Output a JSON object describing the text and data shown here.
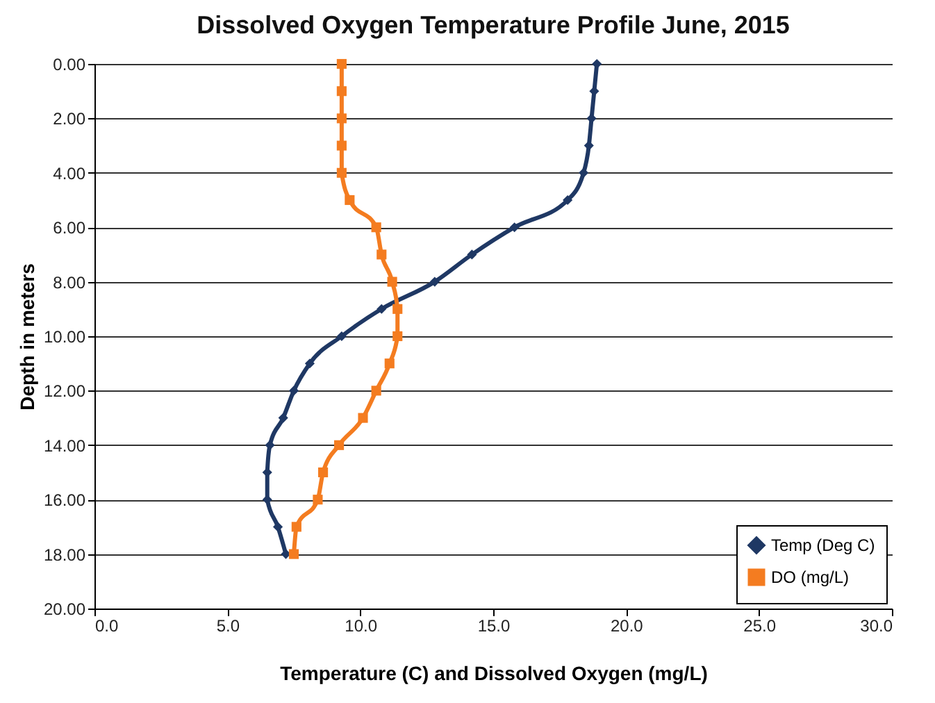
{
  "chart_data": {
    "type": "line",
    "title": "Dissolved Oxygen  Temperature Profile June, 2015",
    "xlabel": "Temperature (C) and Dissolved Oxygen (mg/L)",
    "ylabel": "Depth in meters",
    "xlim": [
      0,
      30
    ],
    "xticks": [
      {
        "value": 0,
        "label": "0.0"
      },
      {
        "value": 5,
        "label": "5.0"
      },
      {
        "value": 10,
        "label": "10.0"
      },
      {
        "value": 15,
        "label": "15.0"
      },
      {
        "value": 20,
        "label": "20.0"
      },
      {
        "value": 25,
        "label": "25.0"
      },
      {
        "value": 30,
        "label": "30.0"
      }
    ],
    "ylim": [
      20,
      0
    ],
    "yticks": [
      {
        "value": 0,
        "label": "0.00"
      },
      {
        "value": 2,
        "label": "2.00"
      },
      {
        "value": 4,
        "label": "4.00"
      },
      {
        "value": 6,
        "label": "6.00"
      },
      {
        "value": 8,
        "label": "8.00"
      },
      {
        "value": 10,
        "label": "10.00"
      },
      {
        "value": 12,
        "label": "12.00"
      },
      {
        "value": 14,
        "label": "14.00"
      },
      {
        "value": 16,
        "label": "16.00"
      },
      {
        "value": 18,
        "label": "18.00"
      },
      {
        "value": 20,
        "label": "20.00"
      }
    ],
    "grid": "y",
    "legend": "bottom right",
    "line_style": "solid",
    "series": [
      {
        "name": "Temp (Deg C)",
        "color": "#1f3864",
        "marker": "diamond",
        "x": [
          18.9,
          18.8,
          18.7,
          18.6,
          18.4,
          17.8,
          15.8,
          14.2,
          12.8,
          10.8,
          9.3,
          8.1,
          7.5,
          7.1,
          6.6,
          6.5,
          6.5,
          6.9,
          7.2
        ],
        "values": [
          0,
          1,
          2,
          3,
          4,
          5,
          6,
          7,
          8,
          9,
          10,
          11,
          12,
          13,
          14,
          15,
          16,
          17,
          18
        ]
      },
      {
        "name": "DO (mg/L)",
        "color": "#f47c20",
        "marker": "square",
        "x": [
          9.3,
          9.3,
          9.3,
          9.3,
          9.3,
          9.6,
          10.6,
          10.8,
          11.2,
          11.4,
          11.4,
          11.1,
          10.6,
          10.1,
          9.2,
          8.6,
          8.4,
          7.6,
          7.5
        ],
        "values": [
          0,
          1,
          2,
          3,
          4,
          5,
          6,
          7,
          8,
          9,
          10,
          11,
          12,
          13,
          14,
          15,
          16,
          17,
          18
        ]
      }
    ]
  }
}
